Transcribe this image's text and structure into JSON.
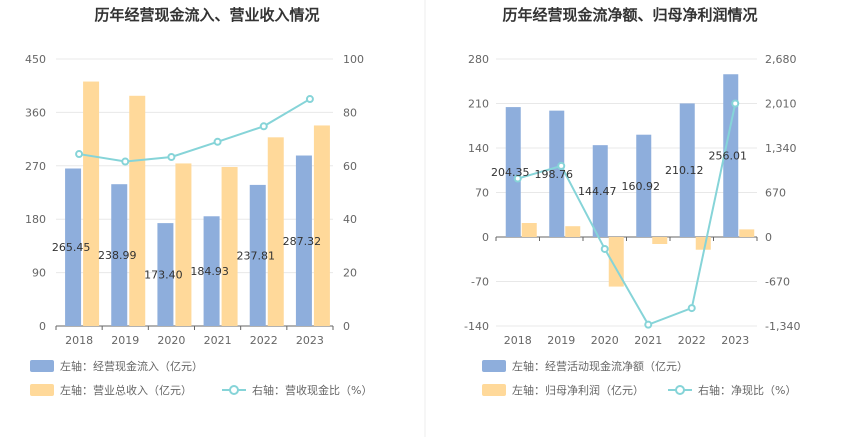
{
  "chart_data": [
    {
      "type": "bar",
      "title": "历年经营现金流入、营业收入情况",
      "categories": [
        "2018",
        "2019",
        "2020",
        "2021",
        "2022",
        "2023"
      ],
      "left_axis": {
        "ticks": [
          "450",
          "360",
          "270",
          "180",
          "90",
          "0"
        ],
        "ylim": [
          0,
          450
        ]
      },
      "right_axis": {
        "ticks": [
          "100",
          "80",
          "60",
          "40",
          "20",
          "0"
        ],
        "ylim": [
          0,
          100
        ]
      },
      "series": [
        {
          "name": "左轴：经营现金流入（亿元）",
          "type": "bar",
          "axis": "left",
          "color": "#8eaedc",
          "values": [
            265.45,
            238.99,
            173.4,
            184.93,
            237.81,
            287.32
          ],
          "labels": [
            "265.45",
            "238.99",
            "173.40",
            "184.93",
            "237.81",
            "287.32"
          ]
        },
        {
          "name": "左轴：营业总收入（亿元）",
          "type": "bar",
          "axis": "left",
          "color": "#ffd99a",
          "values": [
            412,
            388,
            274,
            268,
            318,
            338
          ]
        },
        {
          "name": "右轴：营收现金比（%）",
          "type": "line",
          "axis": "right",
          "color": "#86d4d8",
          "values": [
            64.4,
            61.6,
            63.3,
            69.0,
            74.8,
            85.0
          ]
        }
      ],
      "grid": true,
      "legend_position": "bottom"
    },
    {
      "type": "bar",
      "title": "历年经营现金流净额、归母净利润情况",
      "categories": [
        "2018",
        "2019",
        "2020",
        "2021",
        "2022",
        "2023"
      ],
      "left_axis": {
        "ticks": [
          "280",
          "210",
          "140",
          "70",
          "0",
          "-70",
          "-140"
        ],
        "ylim": [
          -140,
          280
        ]
      },
      "right_axis": {
        "ticks": [
          "2,680",
          "2,010",
          "1,340",
          "670",
          "0",
          "-670",
          "-1,340"
        ],
        "ylim": [
          -1340,
          2680
        ]
      },
      "series": [
        {
          "name": "左轴：经营活动现金流净额（亿元）",
          "type": "bar",
          "axis": "left",
          "color": "#8eaedc",
          "values": [
            204.35,
            198.76,
            144.47,
            160.92,
            210.12,
            256.01
          ],
          "labels": [
            "204.35",
            "198.76",
            "144.47",
            "160.92",
            "210.12",
            "256.01"
          ]
        },
        {
          "name": "左轴：归母净利润（亿元）",
          "type": "bar",
          "axis": "left",
          "color": "#ffd99a",
          "values": [
            22,
            17,
            -78,
            -11,
            -20,
            12
          ]
        },
        {
          "name": "右轴：净现比（%）",
          "type": "line",
          "axis": "right",
          "color": "#86d4d8",
          "values": [
            880,
            1070,
            -180,
            -1320,
            -1070,
            2010
          ]
        }
      ],
      "grid": true,
      "legend_position": "bottom"
    }
  ]
}
